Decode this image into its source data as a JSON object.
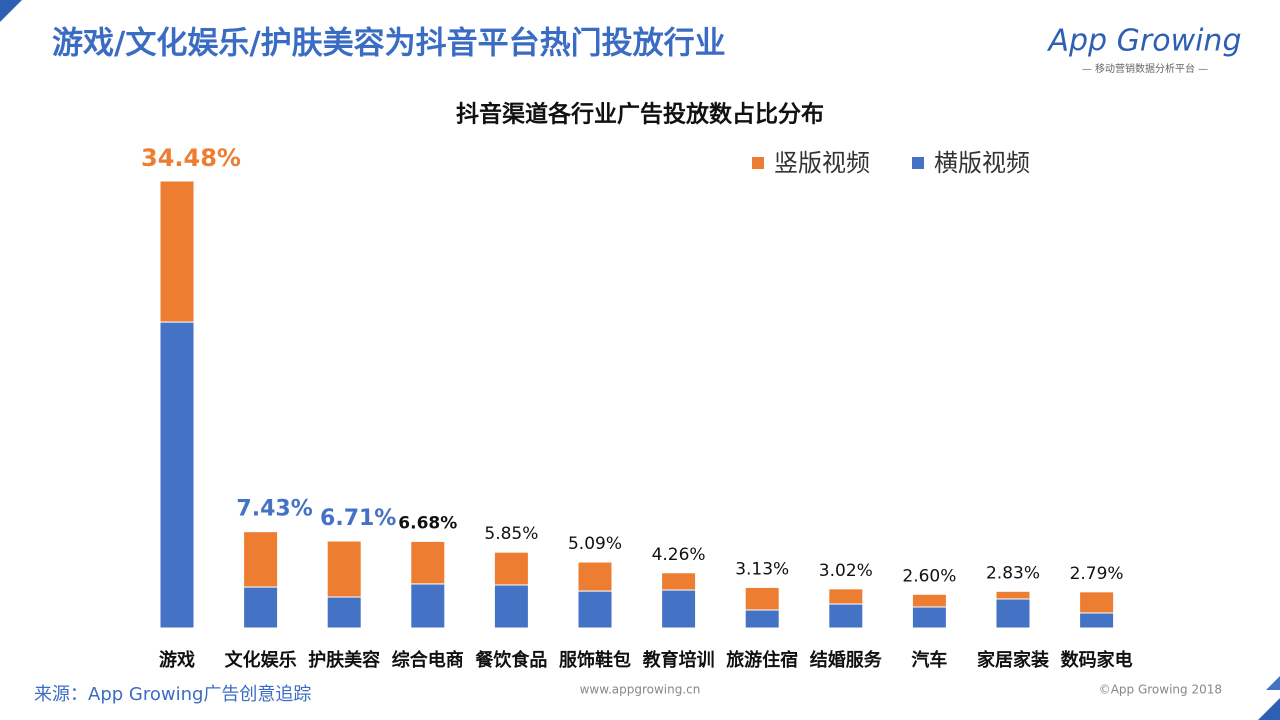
{
  "slide": {
    "title": "游戏/文化娱乐/护肤美容为抖音平台热门投放行业",
    "logo": "App Growing",
    "logo_tagline": "— 移动营销数据分析平台 —",
    "source": "来源：App Growing广告创意追踪",
    "website": "www.appgrowing.cn",
    "copyright": "©App Growing 2018"
  },
  "chart_data": {
    "type": "bar",
    "stacked": true,
    "title": "抖音渠道各行业广告投放数占比分布",
    "legend": "top-right",
    "categories": [
      "游戏",
      "文化娱乐",
      "护肤美容",
      "综合电商",
      "餐饮食品",
      "服饰鞋包",
      "教育培训",
      "旅游住宿",
      "结婚服务",
      "汽车",
      "家居家装",
      "数码家电"
    ],
    "series": [
      {
        "name": "竖版视频",
        "color": "#ed7d31",
        "values": [
          10.88,
          4.27,
          4.32,
          3.28,
          2.53,
          2.24,
          1.33,
          1.74,
          1.17,
          0.98,
          0.59,
          1.63
        ]
      },
      {
        "name": "横版视频",
        "color": "#4472c4",
        "values": [
          23.6,
          3.16,
          2.39,
          3.4,
          3.32,
          2.85,
          2.93,
          1.39,
          1.85,
          1.62,
          2.24,
          1.16
        ]
      }
    ],
    "totals": [
      34.48,
      7.43,
      6.71,
      6.68,
      5.85,
      5.09,
      4.26,
      3.13,
      3.02,
      2.6,
      2.83,
      2.79
    ],
    "total_labels": [
      "34.48%",
      "7.43%",
      "6.71%",
      "6.68%",
      "5.85%",
      "5.09%",
      "4.26%",
      "3.13%",
      "3.02%",
      "2.60%",
      "2.83%",
      "2.79%"
    ]
  }
}
